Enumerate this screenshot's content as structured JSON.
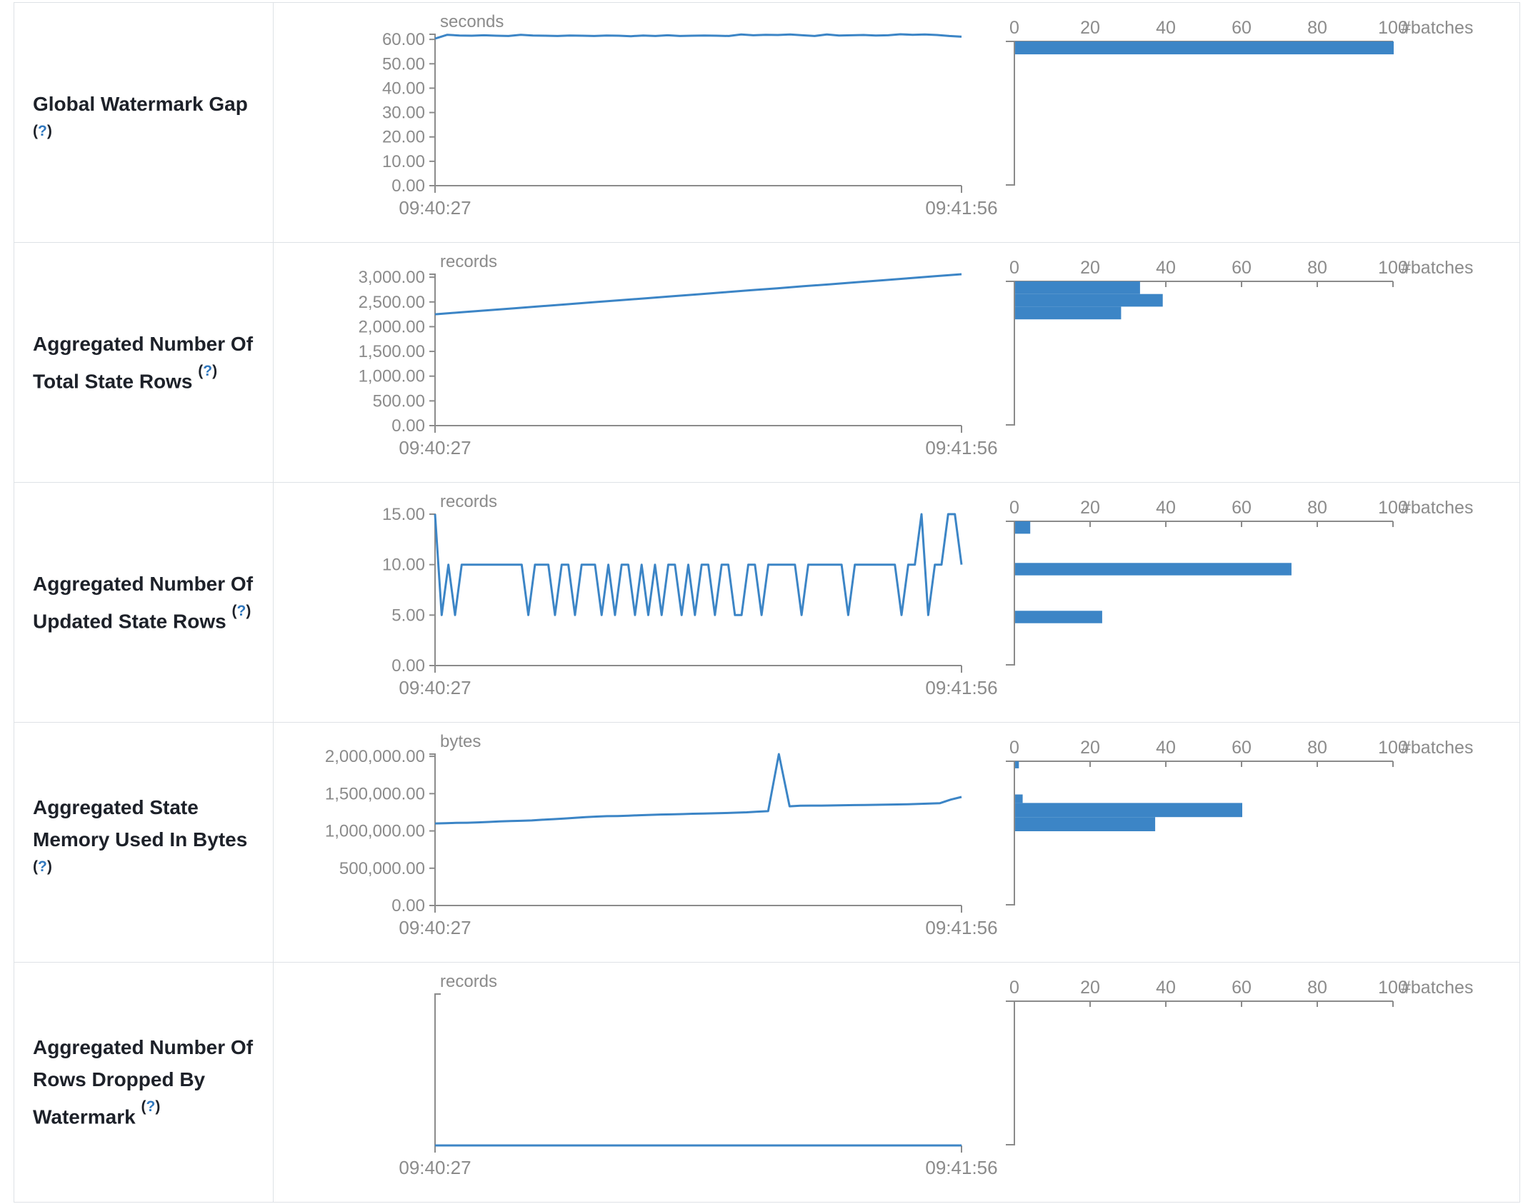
{
  "colors": {
    "series_blue": "#3c85c6",
    "axis_gray": "#8b8b8b",
    "label_dark": "#1d2129",
    "help_blue": "#3178be",
    "table_border": "#dee2e6"
  },
  "chart_data": [
    {
      "label": "Global Watermark Gap",
      "help_open": "(",
      "help_q": "?",
      "help_close": ")",
      "timeline": {
        "type": "line",
        "title_unit": "seconds",
        "x_tick_labels": [
          "09:40:27",
          "09:41:56"
        ],
        "y_tick_labels": [
          "60.00",
          "50.00",
          "40.00",
          "30.00",
          "20.00",
          "10.00",
          "0.00"
        ],
        "y_tick_values": [
          60,
          50,
          40,
          30,
          20,
          10,
          0
        ],
        "values": [
          60.3,
          61.9,
          61.6,
          61.5,
          61.7,
          61.5,
          61.4,
          61.9,
          61.6,
          61.5,
          61.4,
          61.6,
          61.5,
          61.4,
          61.6,
          61.5,
          61.3,
          61.6,
          61.4,
          61.7,
          61.4,
          61.5,
          61.6,
          61.5,
          61.4,
          62.0,
          61.7,
          61.9,
          61.8,
          62.0,
          61.7,
          61.4,
          62.0,
          61.6,
          61.7,
          61.8,
          61.6,
          61.7,
          62.1,
          61.9,
          62.0,
          61.8,
          61.4,
          61.1
        ]
      },
      "histogram": {
        "type": "bar",
        "x_tick_labels": [
          "0",
          "20",
          "40",
          "60",
          "80",
          "100"
        ],
        "x_tick_values": [
          0,
          20,
          40,
          60,
          80,
          100
        ],
        "axis_label": "#batches",
        "bars": [
          {
            "bin_lo": 56.5,
            "bin_hi": 62.1,
            "count": 100
          }
        ]
      }
    },
    {
      "label": "Aggregated Number Of Total State Rows",
      "help_open": "(",
      "help_q": "?",
      "help_close": ")",
      "timeline": {
        "type": "line",
        "title_unit": "records",
        "x_tick_labels": [
          "09:40:27",
          "09:41:56"
        ],
        "y_tick_labels": [
          "3,000.00",
          "2,500.00",
          "2,000.00",
          "1,500.00",
          "1,000.00",
          "500.00",
          "0.00"
        ],
        "y_tick_values": [
          3000,
          2500,
          2000,
          1500,
          1000,
          500,
          0
        ],
        "values": [
          2250,
          2290,
          2331,
          2371,
          2412,
          2452,
          2493,
          2533,
          2574,
          2614,
          2655,
          2695,
          2736,
          2776,
          2817,
          2857,
          2898,
          2938,
          2979,
          3019,
          3060
        ]
      },
      "histogram": {
        "type": "bar",
        "x_tick_labels": [
          "0",
          "20",
          "40",
          "60",
          "80",
          "100"
        ],
        "x_tick_values": [
          0,
          20,
          40,
          60,
          80,
          100
        ],
        "axis_label": "#batches",
        "bars": [
          {
            "bin_lo": 2790,
            "bin_hi": 3060,
            "count": 33
          },
          {
            "bin_lo": 2520,
            "bin_hi": 2790,
            "count": 39
          },
          {
            "bin_lo": 2250,
            "bin_hi": 2520,
            "count": 28
          }
        ]
      }
    },
    {
      "label": "Aggregated Number Of Updated State Rows",
      "help_open": "(",
      "help_q": "?",
      "help_close": ")",
      "timeline": {
        "type": "line",
        "title_unit": "records",
        "x_tick_labels": [
          "09:40:27",
          "09:41:56"
        ],
        "y_tick_labels": [
          "15.00",
          "10.00",
          "5.00",
          "0.00"
        ],
        "y_tick_values": [
          15,
          10,
          5,
          0
        ],
        "values": [
          15,
          5,
          10,
          5,
          10,
          10,
          10,
          10,
          10,
          10,
          10,
          10,
          10,
          10,
          5,
          10,
          10,
          10,
          5,
          10,
          10,
          5,
          10,
          10,
          10,
          5,
          10,
          5,
          10,
          10,
          5,
          10,
          5,
          10,
          5,
          10,
          10,
          5,
          10,
          5,
          10,
          10,
          5,
          10,
          10,
          5,
          5,
          10,
          10,
          5,
          10,
          10,
          10,
          10,
          10,
          5,
          10,
          10,
          10,
          10,
          10,
          10,
          5,
          10,
          10,
          10,
          10,
          10,
          10,
          10,
          5,
          10,
          10,
          15,
          5,
          10,
          10,
          15,
          15,
          10
        ]
      },
      "histogram": {
        "type": "bar",
        "x_tick_labels": [
          "0",
          "20",
          "40",
          "60",
          "80",
          "100"
        ],
        "x_tick_values": [
          0,
          20,
          40,
          60,
          80,
          100
        ],
        "axis_label": "#batches",
        "bars": [
          {
            "bin_lo": 13.7,
            "bin_hi": 15,
            "count": 4
          },
          {
            "bin_lo": 9.35,
            "bin_hi": 10.65,
            "count": 73
          },
          {
            "bin_lo": 4.35,
            "bin_hi": 5.65,
            "count": 23
          }
        ]
      }
    },
    {
      "label": "Aggregated State Memory Used In Bytes",
      "help_open": "(",
      "help_q": "?",
      "help_close": ")",
      "timeline": {
        "type": "line",
        "title_unit": "bytes",
        "x_tick_labels": [
          "09:40:27",
          "09:41:56"
        ],
        "y_tick_labels": [
          "2,000,000.00",
          "1,500,000.00",
          "1,000,000.00",
          "500,000.00",
          "0.00"
        ],
        "y_tick_values": [
          2000000,
          1500000,
          1000000,
          500000,
          0
        ],
        "values": [
          1100000,
          1103000,
          1108000,
          1110000,
          1115000,
          1120000,
          1128000,
          1132000,
          1136000,
          1140000,
          1150000,
          1158000,
          1165000,
          1175000,
          1185000,
          1192000,
          1198000,
          1200000,
          1205000,
          1210000,
          1215000,
          1220000,
          1222000,
          1226000,
          1230000,
          1232000,
          1236000,
          1240000,
          1245000,
          1250000,
          1258000,
          1265000,
          2030000,
          1330000,
          1338000,
          1340000,
          1340000,
          1342000,
          1344000,
          1346000,
          1348000,
          1350000,
          1352000,
          1355000,
          1358000,
          1362000,
          1366000,
          1372000,
          1420000,
          1455000
        ]
      },
      "histogram": {
        "type": "bar",
        "x_tick_labels": [
          "0",
          "20",
          "40",
          "60",
          "80",
          "100"
        ],
        "x_tick_values": [
          0,
          20,
          40,
          60,
          80,
          100
        ],
        "axis_label": "#batches",
        "bars": [
          {
            "bin_lo": 1930000,
            "bin_hi": 2030000,
            "count": 1
          },
          {
            "bin_lo": 1440000,
            "bin_hi": 1560000,
            "count": 2
          },
          {
            "bin_lo": 1240000,
            "bin_hi": 1440000,
            "count": 60
          },
          {
            "bin_lo": 1040000,
            "bin_hi": 1240000,
            "count": 37
          }
        ]
      }
    },
    {
      "label": "Aggregated Number Of Rows Dropped By Watermark",
      "help_open": "(",
      "help_q": "?",
      "help_close": ")",
      "timeline": {
        "type": "line",
        "title_unit": "records",
        "x_tick_labels": [
          "09:40:27",
          "09:41:56"
        ],
        "y_tick_labels": [],
        "y_tick_values": [],
        "values": [
          0,
          0
        ]
      },
      "histogram": {
        "type": "bar",
        "x_tick_labels": [
          "0",
          "20",
          "40",
          "60",
          "80",
          "100"
        ],
        "x_tick_values": [
          0,
          20,
          40,
          60,
          80,
          100
        ],
        "axis_label": "#batches",
        "bars": []
      }
    }
  ]
}
